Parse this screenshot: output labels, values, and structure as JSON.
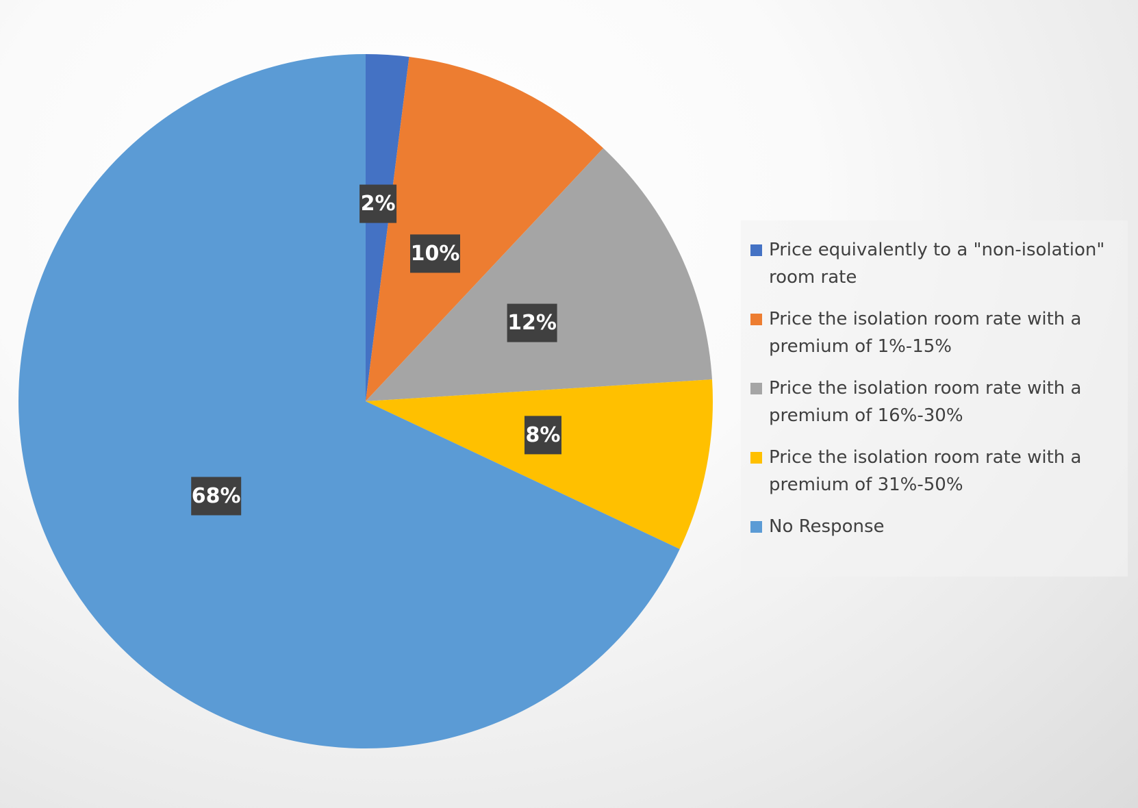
{
  "chart_data": {
    "type": "pie",
    "start_angle_deg": 0,
    "direction": "clockwise",
    "legend_position": "right",
    "slices": [
      {
        "label": "Price equivalently to a \"non-isolation\" room rate",
        "value": 2,
        "data_label": "2%",
        "color": "#4472C4"
      },
      {
        "label": "Price the isolation room rate with a premium of 1%-15%",
        "value": 10,
        "data_label": "10%",
        "color": "#ED7D31"
      },
      {
        "label": "Price the isolation room rate with a premium of 16%-30%",
        "value": 12,
        "data_label": "12%",
        "color": "#A5A5A5"
      },
      {
        "label": "Price the isolation room rate with a premium of 31%-50%",
        "value": 8,
        "data_label": "8%",
        "color": "#FFC000"
      },
      {
        "label": "No Response",
        "value": 68,
        "data_label": "68%",
        "color": "#5B9BD5"
      }
    ]
  }
}
